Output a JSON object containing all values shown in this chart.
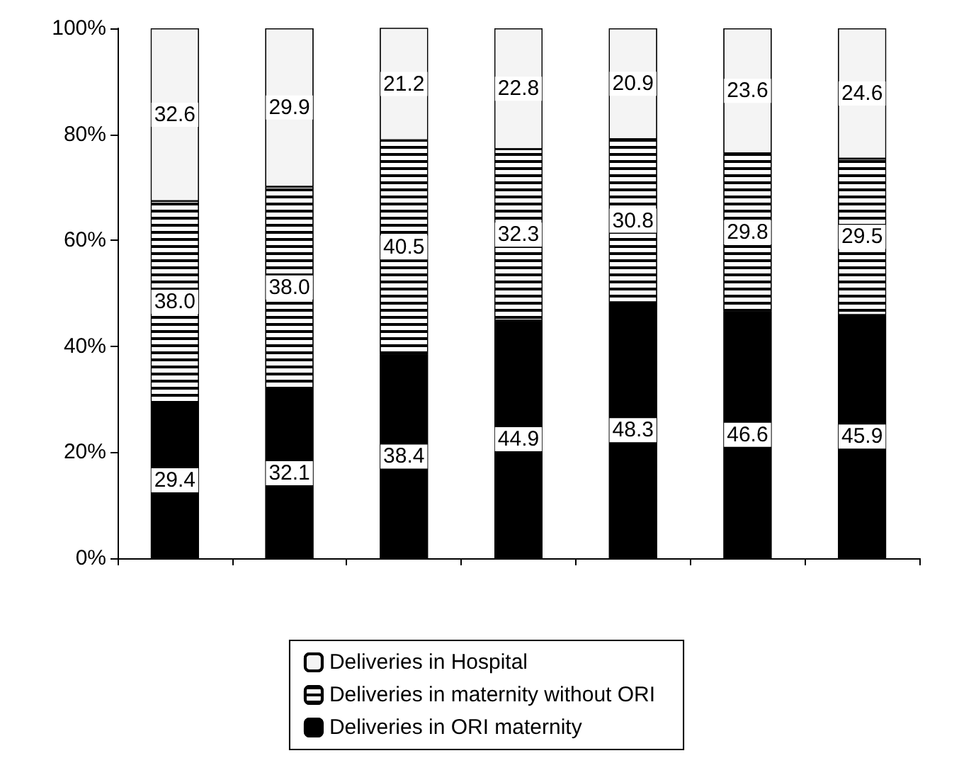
{
  "chart_data": {
    "type": "bar",
    "stacked": true,
    "categories": [
      null,
      null,
      null,
      null,
      null,
      null,
      null
    ],
    "series": [
      {
        "name": "Deliveries in ORI maternity",
        "color": "#000000",
        "values": [
          29.4,
          32.1,
          38.4,
          44.9,
          48.3,
          46.6,
          45.9
        ],
        "value_labels": [
          "29.4",
          "32.1",
          "38.4",
          "44.9",
          "48.3",
          "46.6",
          "45.9"
        ]
      },
      {
        "name": "Deliveries in maternity without ORI",
        "color": "#ffffff",
        "values": [
          38.0,
          38.0,
          40.5,
          32.3,
          30.8,
          29.8,
          29.5
        ],
        "value_labels": [
          "38.0",
          "38.0",
          "40.5",
          "32.3",
          "30.8",
          "29.8",
          "29.5"
        ]
      },
      {
        "name": "Deliveries in Hospital",
        "color": "#f4f4f4",
        "values": [
          32.6,
          29.9,
          21.2,
          22.8,
          20.9,
          23.6,
          24.6
        ],
        "value_labels": [
          "32.6",
          "29.9",
          "21.2",
          "22.8",
          "20.9",
          "23.6",
          "24.6"
        ]
      }
    ],
    "ylim": [
      0,
      100
    ],
    "yticks": [
      {
        "value": 0,
        "label": "0%"
      },
      {
        "value": 20,
        "label": "20%"
      },
      {
        "value": 40,
        "label": "40%"
      },
      {
        "value": 60,
        "label": "60%"
      },
      {
        "value": 80,
        "label": "80%"
      },
      {
        "value": 100,
        "label": "100%"
      }
    ],
    "grid": false,
    "legend": "bottom"
  }
}
